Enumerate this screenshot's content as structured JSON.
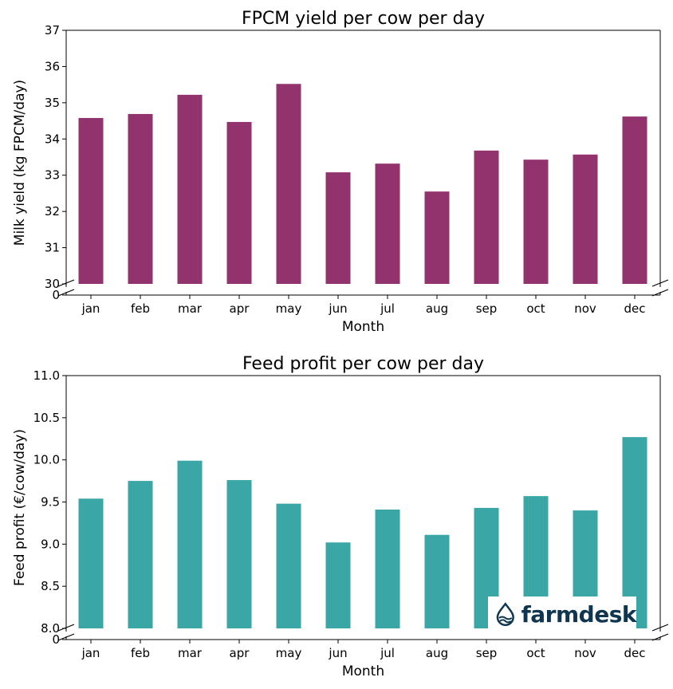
{
  "chart_data": [
    {
      "type": "bar",
      "title": "FPCM yield per cow per day",
      "xlabel": "Month",
      "ylabel": "Milk yield (kg FPCM/day)",
      "categories": [
        "jan",
        "feb",
        "mar",
        "apr",
        "may",
        "jun",
        "jul",
        "aug",
        "sep",
        "oct",
        "nov",
        "dec"
      ],
      "values": [
        34.58,
        34.69,
        35.22,
        34.47,
        35.52,
        33.08,
        33.32,
        32.55,
        33.68,
        33.43,
        33.57,
        34.62
      ],
      "ylim": [
        30,
        37
      ],
      "yticks": [
        "30",
        "31",
        "32",
        "33",
        "34",
        "35",
        "36",
        "37"
      ],
      "broken_axis_zero_label": "0",
      "color": "#93336e",
      "grid": false
    },
    {
      "type": "bar",
      "title": "Feed profit per cow per day",
      "xlabel": "Month",
      "ylabel": "Feed profit (€/cow/day)",
      "categories": [
        "jan",
        "feb",
        "mar",
        "apr",
        "may",
        "jun",
        "jul",
        "aug",
        "sep",
        "oct",
        "nov",
        "dec"
      ],
      "values": [
        9.54,
        9.75,
        9.99,
        9.76,
        9.48,
        9.02,
        9.41,
        9.11,
        9.43,
        9.57,
        9.4,
        10.27
      ],
      "ylim": [
        8.0,
        11.0
      ],
      "yticks": [
        "8.0",
        "8.5",
        "9.0",
        "9.5",
        "10.0",
        "10.5",
        "11.0"
      ],
      "broken_axis_zero_label": "0",
      "color": "#3aa6a6",
      "grid": false
    }
  ],
  "logo": {
    "text": "farmdesk",
    "color": "#0f3550"
  }
}
